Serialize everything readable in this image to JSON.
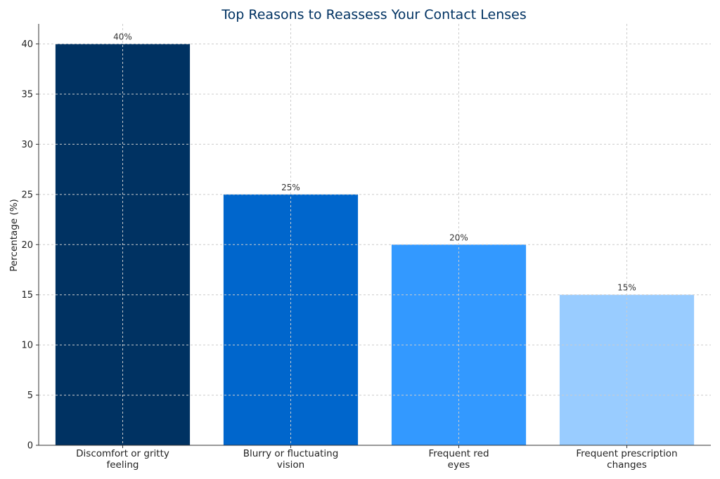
{
  "chart_data": {
    "type": "bar",
    "title": "Top Reasons to Reassess Your Contact Lenses",
    "xlabel": "",
    "ylabel": "Percentage (%)",
    "categories": [
      [
        "Discomfort or gritty",
        "feeling"
      ],
      [
        "Blurry or fluctuating",
        "vision"
      ],
      [
        "Frequent red",
        "eyes"
      ],
      [
        "Frequent prescription",
        "changes"
      ]
    ],
    "values": [
      40,
      25,
      20,
      15
    ],
    "value_labels": [
      "40%",
      "25%",
      "20%",
      "15%"
    ],
    "bar_colors": [
      "#003262",
      "#0066cc",
      "#3399ff",
      "#99ccff"
    ],
    "ylim": [
      0,
      42
    ],
    "yticks": [
      0,
      5,
      10,
      15,
      20,
      25,
      30,
      35,
      40
    ],
    "grid": true,
    "title_color": "#003262"
  }
}
